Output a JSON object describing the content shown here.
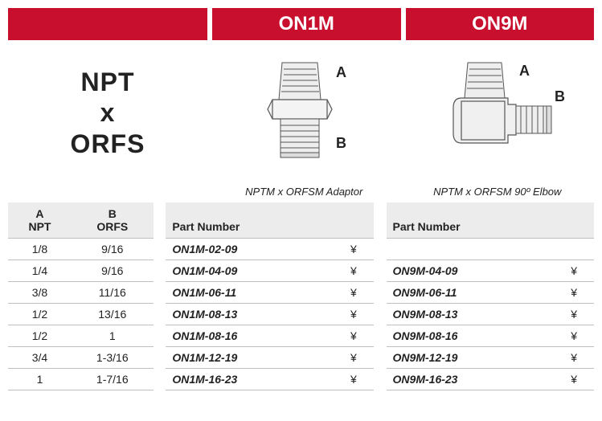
{
  "header": {
    "col1_title": "ON1M",
    "col2_title": "ON9M"
  },
  "label_block": {
    "line1": "NPT",
    "line2": "x",
    "line3": "ORFS"
  },
  "diagrams": {
    "on1m_port_a": "A",
    "on1m_port_b": "B",
    "on9m_port_a": "A",
    "on9m_port_b": "B"
  },
  "captions": {
    "on1m": "NPTM x ORFSM Adaptor",
    "on9m": "NPTM x ORFSM 90º Elbow"
  },
  "table": {
    "head_a_line1": "A",
    "head_a_line2": "NPT",
    "head_b_line1": "B",
    "head_b_line2": "ORFS",
    "head_pn": "Part Number",
    "yen": "¥",
    "rows": [
      {
        "a": "1/8",
        "b": "9/16",
        "pn1": "ON1M-02-09",
        "pn2": ""
      },
      {
        "a": "1/4",
        "b": "9/16",
        "pn1": "ON1M-04-09",
        "pn2": "ON9M-04-09"
      },
      {
        "a": "3/8",
        "b": "11/16",
        "pn1": "ON1M-06-11",
        "pn2": "ON9M-06-11"
      },
      {
        "a": "1/2",
        "b": "13/16",
        "pn1": "ON1M-08-13",
        "pn2": "ON9M-08-13"
      },
      {
        "a": "1/2",
        "b": "1",
        "pn1": "ON1M-08-16",
        "pn2": "ON9M-08-16"
      },
      {
        "a": "3/4",
        "b": "1-3/16",
        "pn1": "ON1M-12-19",
        "pn2": "ON9M-12-19"
      },
      {
        "a": "1",
        "b": "1-7/16",
        "pn1": "ON1M-16-23",
        "pn2": "ON9M-16-23"
      }
    ]
  },
  "style": {
    "brand_red": "#c8102e",
    "grid_gray": "#bfbfbf",
    "head_gray": "#ececec"
  }
}
